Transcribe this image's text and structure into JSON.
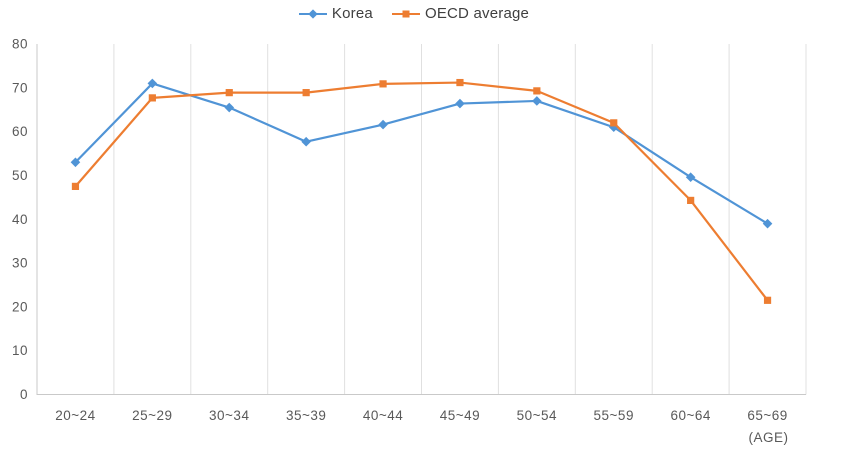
{
  "chart_data": {
    "type": "line",
    "categories": [
      "20~24",
      "25~29",
      "30~34",
      "35~39",
      "40~44",
      "45~49",
      "50~54",
      "55~59",
      "60~64",
      "65~69"
    ],
    "series": [
      {
        "name": "Korea",
        "marker": "diamond",
        "color": "#5094D6",
        "values": [
          53,
          71,
          65.5,
          57.7,
          61.6,
          66.4,
          67,
          61,
          49.6,
          39
        ]
      },
      {
        "name": "OECD average",
        "marker": "square",
        "color": "#ED7D31",
        "values": [
          47.5,
          67.7,
          68.9,
          68.9,
          70.9,
          71.2,
          69.3,
          62,
          44.3,
          21.5
        ]
      }
    ],
    "xlabel": "(AGE)",
    "ylabel": "",
    "ylim": [
      0,
      80
    ],
    "ytick_step": 10,
    "grid": "vertical-only",
    "legend_position": "top-center",
    "colors": {
      "grid_color": "#E0E0E0",
      "axis_color": "#C9C9C9",
      "tick_color": "#595959"
    }
  }
}
